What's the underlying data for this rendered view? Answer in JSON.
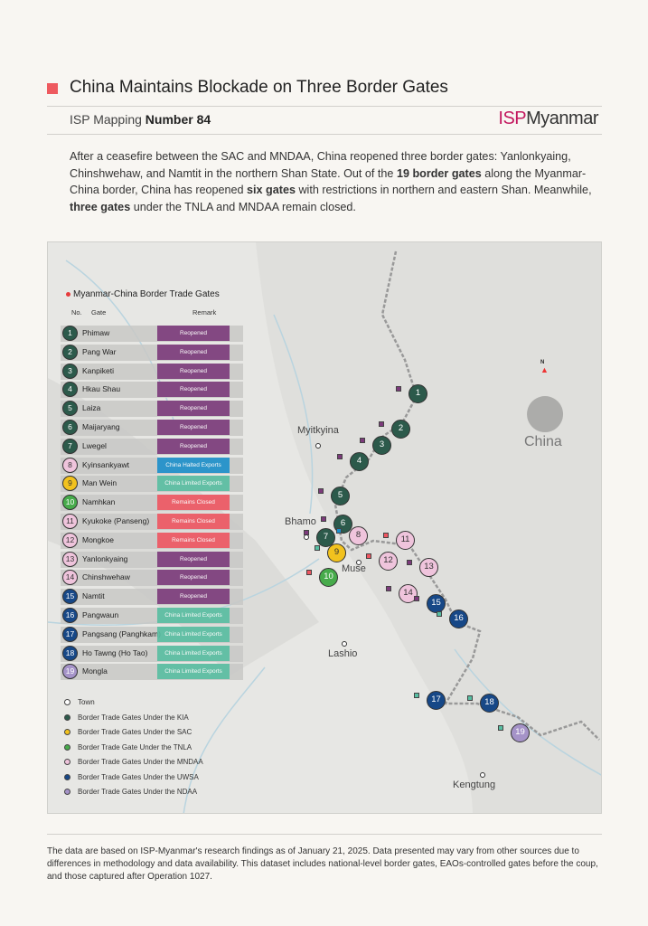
{
  "header": {
    "title": "China Maintains Blockade on Three Border Gates",
    "series_label": "ISP Mapping",
    "series_number": "Number 84",
    "logo_isp": "ISP",
    "logo_rest": "Myanmar"
  },
  "intro": {
    "p1": "After a ceasefire between the SAC and MNDAA, China reopened three border gates: Yanlonkyaing, Chinshwehaw, and Namtit in the northern Shan State. Out of the ",
    "b1": "19 border gates",
    "p2": " along the Myanmar-China border, China has reopened ",
    "b2": "six gates",
    "p3": " with restrictions in northern and eastern Shan. Meanwhile, ",
    "b3": "three gates",
    "p4": " under the TNLA and MNDAA remain closed."
  },
  "panel": {
    "title": "Myanmar-China Border Trade Gates",
    "col_no": "No.",
    "col_gate": "Gate",
    "col_remark": "Remark"
  },
  "colors": {
    "KIA": "#2c5a4b",
    "SAC": "#f2c21e",
    "TNLA": "#47ab4b",
    "MNDAA": "#efc4dc",
    "UWSA": "#174887",
    "NDAA": "#a593c8",
    "Reopened": "#7c3a7b",
    "China Halted Exports": "#1b8fcb",
    "China Limited Exports": "#58bea2",
    "Remains Closed": "#ef5661",
    "accent": "#ee5a5f"
  },
  "gates": [
    {
      "no": "1",
      "name": "Phimaw",
      "group": "KIA",
      "remark": "Reopened"
    },
    {
      "no": "2",
      "name": "Pang War",
      "group": "KIA",
      "remark": "Reopened"
    },
    {
      "no": "3",
      "name": "Kanpiketi",
      "group": "KIA",
      "remark": "Reopened"
    },
    {
      "no": "4",
      "name": "Hkau Shau",
      "group": "KIA",
      "remark": "Reopened"
    },
    {
      "no": "5",
      "name": "Laiza",
      "group": "KIA",
      "remark": "Reopened"
    },
    {
      "no": "6",
      "name": "Maijaryang",
      "group": "KIA",
      "remark": "Reopened"
    },
    {
      "no": "7",
      "name": "Lwegel",
      "group": "KIA",
      "remark": "Reopened"
    },
    {
      "no": "8",
      "name": "Kyinsankyawt",
      "group": "MNDAA",
      "remark": "China Halted Exports"
    },
    {
      "no": "9",
      "name": "Man Wein",
      "group": "SAC",
      "remark": "China Limited Exports"
    },
    {
      "no": "10",
      "name": "Namhkan",
      "group": "TNLA",
      "remark": "Remains Closed"
    },
    {
      "no": "11",
      "name": "Kyukoke (Panseng)",
      "group": "MNDAA",
      "remark": "Remains Closed"
    },
    {
      "no": "12",
      "name": "Mongkoe",
      "group": "MNDAA",
      "remark": "Remains Closed"
    },
    {
      "no": "13",
      "name": "Yanlonkyaing",
      "group": "MNDAA",
      "remark": "Reopened"
    },
    {
      "no": "14",
      "name": "Chinshwehaw",
      "group": "MNDAA",
      "remark": "Reopened"
    },
    {
      "no": "15",
      "name": "Namtit",
      "group": "UWSA",
      "remark": "Reopened"
    },
    {
      "no": "16",
      "name": "Pangwaun",
      "group": "UWSA",
      "remark": "China Limited Exports"
    },
    {
      "no": "17",
      "name": "Pangsang (Panghkam)",
      "group": "UWSA",
      "remark": "China Limited Exports"
    },
    {
      "no": "18",
      "name": "Ho Tawng (Ho Tao)",
      "group": "UWSA",
      "remark": "China Limited Exports"
    },
    {
      "no": "19",
      "name": "Mongla",
      "group": "NDAA",
      "remark": "China Limited Exports"
    }
  ],
  "legend": [
    {
      "label": "Town",
      "group": "Town"
    },
    {
      "label": "Border Trade Gates Under the KIA",
      "group": "KIA"
    },
    {
      "label": "Border Trade Gates Under the SAC",
      "group": "SAC"
    },
    {
      "label": "Border Trade Gate Under the TNLA",
      "group": "TNLA"
    },
    {
      "label": "Border Trade Gates Under the MNDAA",
      "group": "MNDAA"
    },
    {
      "label": "Border Trade Gates Under the UWSA",
      "group": "UWSA"
    },
    {
      "label": "Border Trade Gates Under the NDAA",
      "group": "NDAA"
    }
  ],
  "map": {
    "towns": [
      "Myitkyina",
      "Bhamo",
      "Muse",
      "Lashio",
      "Kengtung"
    ],
    "country_label": "China",
    "north_label": "N"
  },
  "footer": {
    "text": "The data are based on ISP-Myanmar's research findings as of January 21, 2025. Data presented may vary from other sources due to differences in methodology and data availability. This dataset includes national-level border gates, EAOs-controlled gates before the coup, and those captured after Operation 1027."
  }
}
